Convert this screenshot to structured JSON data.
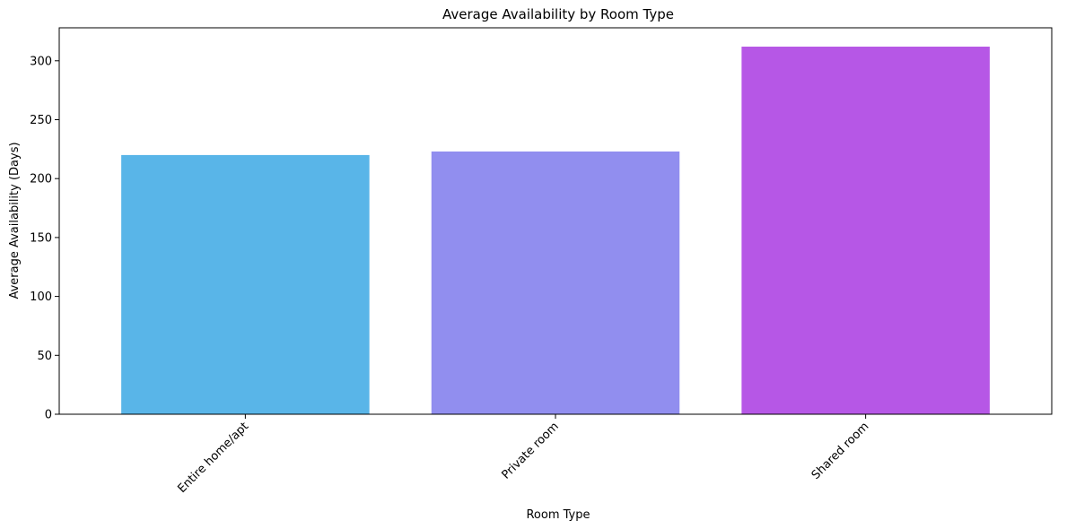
{
  "chart_data": {
    "type": "bar",
    "title": "Average Availability by Room Type",
    "xlabel": "Room Type",
    "ylabel": "Average Availability (Days)",
    "categories": [
      "Entire home/apt",
      "Private room",
      "Shared room"
    ],
    "values": [
      220,
      223,
      312
    ],
    "colors": [
      "#59b5e8",
      "#918eef",
      "#b657e6"
    ],
    "ylim": [
      0,
      328
    ],
    "yticks": [
      0,
      50,
      100,
      150,
      200,
      250,
      300
    ],
    "grid": false,
    "legend": "none"
  }
}
